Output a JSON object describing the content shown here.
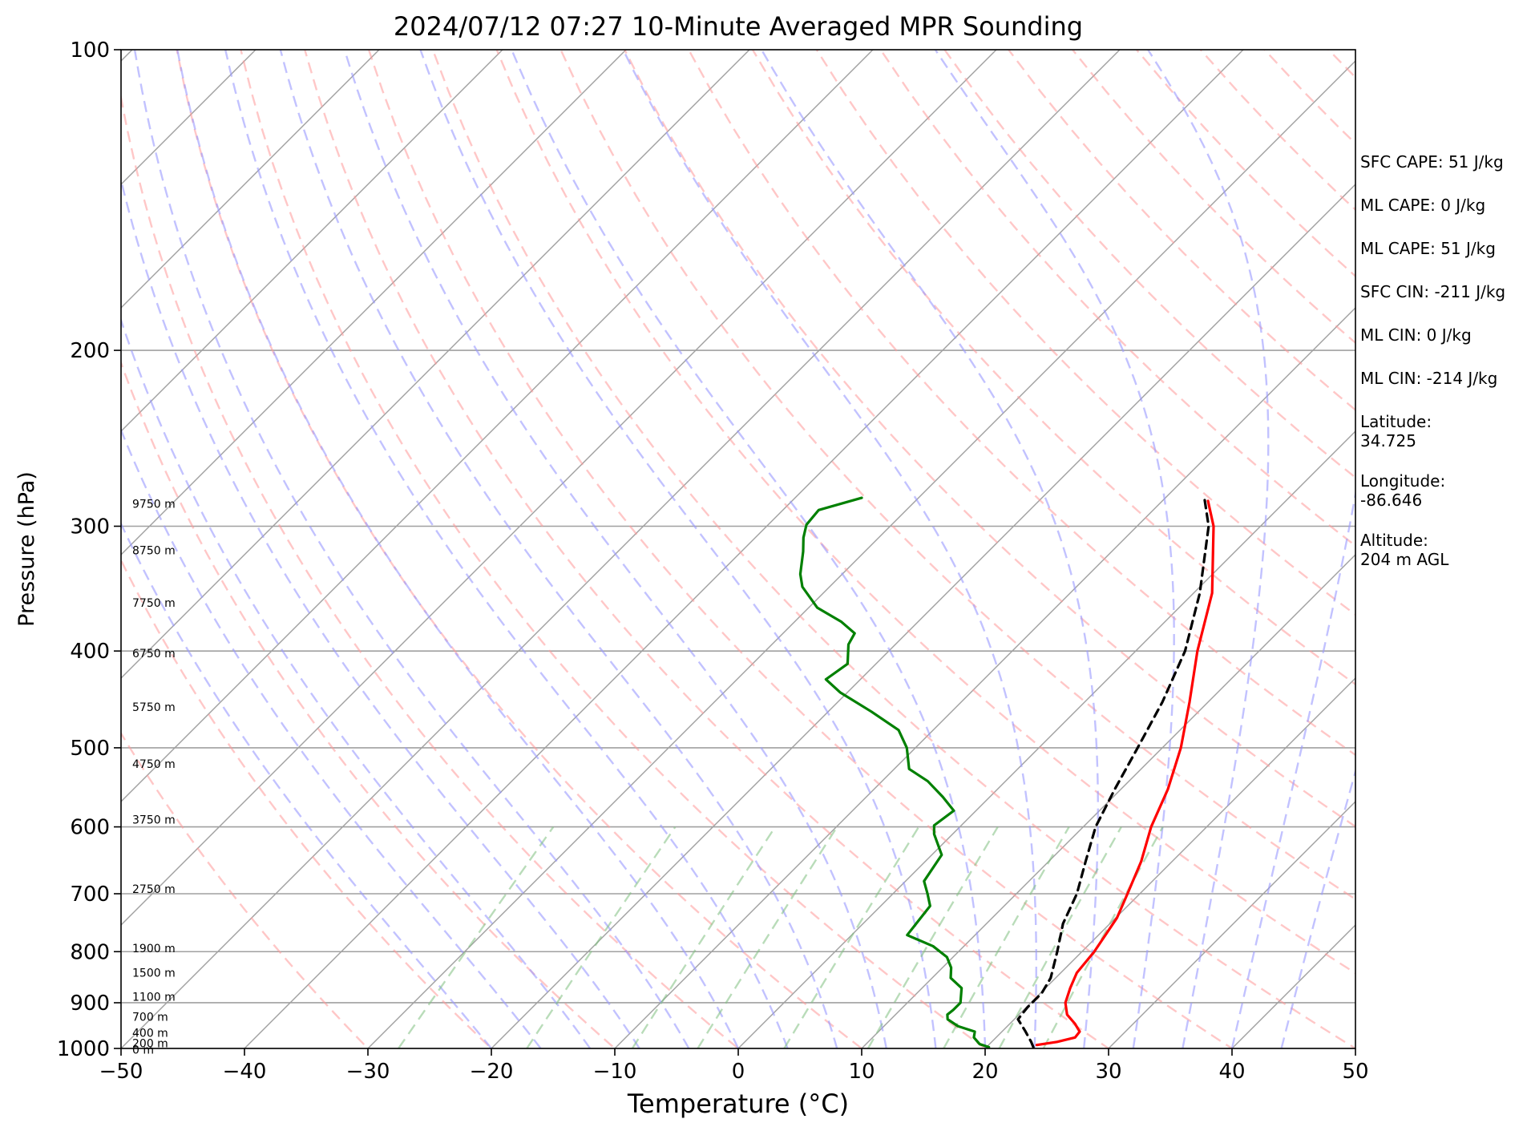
{
  "chart_data": {
    "type": "skew-t",
    "title": "2024/07/12 07:27 10-Minute Averaged MPR Sounding",
    "xlabel": "Temperature (°C)",
    "ylabel": "Pressure (hPa)",
    "xlim": [
      -50,
      50
    ],
    "ylim": [
      1000,
      100
    ],
    "y_scale": "log",
    "x_ticks": [
      "−50",
      "−40",
      "−30",
      "−20",
      "−10",
      "0",
      "10",
      "20",
      "30",
      "40",
      "50"
    ],
    "y_ticks": [
      100,
      200,
      300,
      400,
      500,
      600,
      700,
      800,
      900,
      1000
    ],
    "grid": true,
    "colors": {
      "temperature": "#ff0000",
      "dewpoint": "#008000",
      "parcel": "#000000",
      "dry_adiabat": "#ff9999",
      "moist_adiabat": "#9999ff",
      "mixing_ratio": "#80c080",
      "isotherm": "#a0a0a0"
    },
    "height_labels": [
      {
        "label": "9750 m",
        "p": 285
      },
      {
        "label": "8750 m",
        "p": 317
      },
      {
        "label": "7750 m",
        "p": 358
      },
      {
        "label": "6750 m",
        "p": 402
      },
      {
        "label": "5750 m",
        "p": 455
      },
      {
        "label": "4750 m",
        "p": 519
      },
      {
        "label": "3750 m",
        "p": 590
      },
      {
        "label": "2750 m",
        "p": 692
      },
      {
        "label": "1900 m",
        "p": 794
      },
      {
        "label": "1500 m",
        "p": 840
      },
      {
        "label": "1100 m",
        "p": 888
      },
      {
        "label": "700 m",
        "p": 930
      },
      {
        "label": "400 m",
        "p": 965
      },
      {
        "label": "200 m",
        "p": 988
      },
      {
        "label": "0 m",
        "p": 1003
      }
    ],
    "series": [
      {
        "id": "temperature",
        "points": [
          {
            "p": 992,
            "t": 23.9
          },
          {
            "p": 985,
            "t": 25.3
          },
          {
            "p": 975,
            "t": 26.4
          },
          {
            "p": 962,
            "t": 26.3
          },
          {
            "p": 945,
            "t": 25.3
          },
          {
            "p": 925,
            "t": 23.9
          },
          {
            "p": 900,
            "t": 22.8
          },
          {
            "p": 870,
            "t": 22.0
          },
          {
            "p": 840,
            "t": 21.3
          },
          {
            "p": 800,
            "t": 21.0
          },
          {
            "p": 740,
            "t": 20.1
          },
          {
            "p": 700,
            "t": 19.0
          },
          {
            "p": 650,
            "t": 17.5
          },
          {
            "p": 600,
            "t": 15.5
          },
          {
            "p": 550,
            "t": 13.8
          },
          {
            "p": 500,
            "t": 11.5
          },
          {
            "p": 450,
            "t": 8.5
          },
          {
            "p": 400,
            "t": 5.0
          },
          {
            "p": 350,
            "t": 1.5
          },
          {
            "p": 300,
            "t": -3.8
          },
          {
            "p": 283,
            "t": -6.3
          }
        ]
      },
      {
        "id": "dewpoint",
        "points": [
          {
            "p": 997,
            "t": 20.2
          },
          {
            "p": 990,
            "t": 19.2
          },
          {
            "p": 975,
            "t": 18.2
          },
          {
            "p": 962,
            "t": 17.8
          },
          {
            "p": 950,
            "t": 16.0
          },
          {
            "p": 935,
            "t": 14.6
          },
          {
            "p": 925,
            "t": 14.2
          },
          {
            "p": 915,
            "t": 14.3
          },
          {
            "p": 900,
            "t": 14.3
          },
          {
            "p": 870,
            "t": 13.2
          },
          {
            "p": 850,
            "t": 11.5
          },
          {
            "p": 830,
            "t": 10.7
          },
          {
            "p": 810,
            "t": 9.5
          },
          {
            "p": 790,
            "t": 7.5
          },
          {
            "p": 770,
            "t": 4.5
          },
          {
            "p": 720,
            "t": 4.0
          },
          {
            "p": 700,
            "t": 2.8
          },
          {
            "p": 680,
            "t": 1.5
          },
          {
            "p": 640,
            "t": 0.8
          },
          {
            "p": 610,
            "t": -1.5
          },
          {
            "p": 598,
            "t": -2.2
          },
          {
            "p": 578,
            "t": -1.8
          },
          {
            "p": 560,
            "t": -3.8
          },
          {
            "p": 540,
            "t": -6.3
          },
          {
            "p": 525,
            "t": -8.8
          },
          {
            "p": 500,
            "t": -10.7
          },
          {
            "p": 480,
            "t": -12.8
          },
          {
            "p": 460,
            "t": -16.5
          },
          {
            "p": 440,
            "t": -20.6
          },
          {
            "p": 427,
            "t": -22.8
          },
          {
            "p": 412,
            "t": -22.3
          },
          {
            "p": 394,
            "t": -23.8
          },
          {
            "p": 384,
            "t": -24.2
          },
          {
            "p": 374,
            "t": -26.2
          },
          {
            "p": 362,
            "t": -29.3
          },
          {
            "p": 345,
            "t": -32.2
          },
          {
            "p": 335,
            "t": -33.4
          },
          {
            "p": 318,
            "t": -35.0
          },
          {
            "p": 308,
            "t": -36.1
          },
          {
            "p": 299,
            "t": -36.9
          },
          {
            "p": 289,
            "t": -37.1
          },
          {
            "p": 281,
            "t": -34.6
          }
        ]
      },
      {
        "id": "parcel",
        "points": [
          {
            "p": 997,
            "t": 23.8
          },
          {
            "p": 985,
            "t": 23.2
          },
          {
            "p": 960,
            "t": 21.8
          },
          {
            "p": 935,
            "t": 20.3
          },
          {
            "p": 910,
            "t": 20.1
          },
          {
            "p": 880,
            "t": 20.1
          },
          {
            "p": 850,
            "t": 19.6
          },
          {
            "p": 800,
            "t": 18.0
          },
          {
            "p": 750,
            "t": 16.2
          },
          {
            "p": 700,
            "t": 14.9
          },
          {
            "p": 650,
            "t": 13.0
          },
          {
            "p": 600,
            "t": 11.0
          },
          {
            "p": 550,
            "t": 9.5
          },
          {
            "p": 500,
            "t": 8.0
          },
          {
            "p": 450,
            "t": 6.3
          },
          {
            "p": 400,
            "t": 4.0
          },
          {
            "p": 350,
            "t": 0.5
          },
          {
            "p": 300,
            "t": -4.2
          },
          {
            "p": 282,
            "t": -6.7
          }
        ]
      }
    ]
  },
  "info": {
    "sfc_cape": "SFC CAPE: 51 J/kg",
    "ml_cape_1": "ML CAPE: 0 J/kg",
    "ml_cape_2": "ML CAPE: 51 J/kg",
    "sfc_cin": "SFC CIN: -211 J/kg",
    "ml_cin_1": "ML CIN: 0 J/kg",
    "ml_cin_2": "ML CIN: -214 J/kg",
    "latitude_label": "Latitude:",
    "latitude_value": "34.725",
    "longitude_label": "Longitude:",
    "longitude_value": "-86.646",
    "altitude_label": "Altitude:",
    "altitude_value": "204 m AGL"
  }
}
